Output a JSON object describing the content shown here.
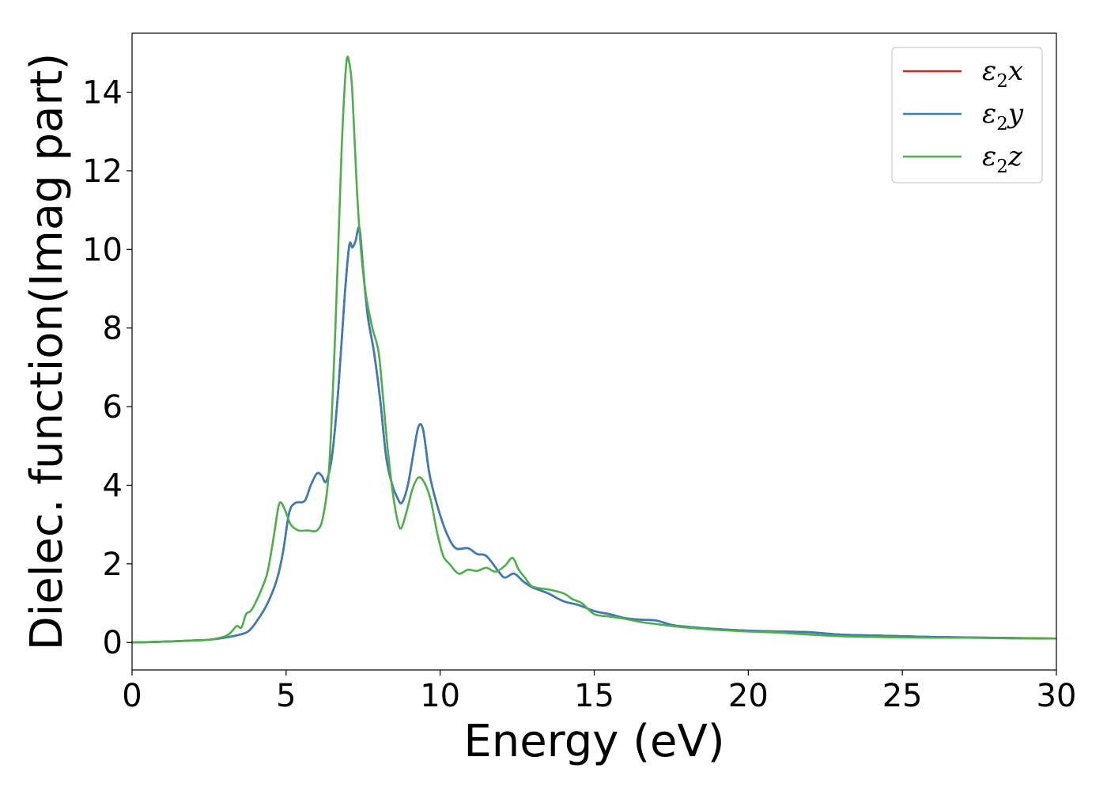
{
  "chart_data": {
    "type": "line",
    "xlabel": "Energy (eV)",
    "ylabel": "Dielec. function(Imag part)",
    "xlim": [
      0,
      30
    ],
    "ylim": [
      -0.7,
      15.5
    ],
    "xticks": [
      0,
      5,
      10,
      15,
      20,
      25,
      30
    ],
    "xtick_labels": [
      "0",
      "5",
      "10",
      "15",
      "20",
      "25",
      "30"
    ],
    "yticks": [
      0,
      2,
      4,
      6,
      8,
      10,
      12,
      14
    ],
    "ytick_labels": [
      "0",
      "2",
      "4",
      "6",
      "8",
      "10",
      "12",
      "14"
    ],
    "grid": false,
    "legend_position": "top-right",
    "series": [
      {
        "name": "ε2x",
        "legend": {
          "base": "ε",
          "sub": "2",
          "var": "x"
        },
        "color": "#e41a1c",
        "x": [
          0,
          1,
          2,
          2.5,
          3,
          3.5,
          3.8,
          4.1,
          4.4,
          4.7,
          4.9,
          5.1,
          5.3,
          5.6,
          5.8,
          6.0,
          6.15,
          6.3,
          6.5,
          6.7,
          6.9,
          7.05,
          7.15,
          7.25,
          7.38,
          7.5,
          7.65,
          7.85,
          8.05,
          8.25,
          8.45,
          8.6,
          8.75,
          8.95,
          9.15,
          9.3,
          9.45,
          9.65,
          9.9,
          10.2,
          10.5,
          10.9,
          11.2,
          11.5,
          11.9,
          12.1,
          12.4,
          12.7,
          13,
          13.5,
          14,
          14.5,
          15,
          15.5,
          16,
          16.5,
          17,
          17.5,
          18,
          19,
          20,
          21,
          22,
          23,
          24,
          25,
          26,
          27,
          28,
          29,
          30
        ],
        "values": [
          0,
          0.02,
          0.05,
          0.07,
          0.12,
          0.2,
          0.3,
          0.6,
          1.0,
          1.6,
          2.3,
          3.3,
          3.55,
          3.6,
          4.0,
          4.3,
          4.25,
          4.1,
          4.8,
          6.5,
          8.8,
          10.1,
          10.05,
          10.2,
          10.55,
          9.5,
          8.3,
          7.4,
          6.2,
          4.7,
          4.0,
          3.7,
          3.55,
          4.0,
          4.9,
          5.5,
          5.4,
          4.3,
          3.5,
          2.8,
          2.4,
          2.4,
          2.25,
          2.2,
          1.8,
          1.65,
          1.75,
          1.55,
          1.4,
          1.25,
          1.05,
          0.95,
          0.8,
          0.72,
          0.62,
          0.58,
          0.56,
          0.45,
          0.4,
          0.34,
          0.3,
          0.28,
          0.26,
          0.2,
          0.18,
          0.16,
          0.14,
          0.13,
          0.12,
          0.11,
          0.1
        ]
      },
      {
        "name": "ε2y",
        "legend": {
          "base": "ε",
          "sub": "2",
          "var": "y"
        },
        "color": "#377eb8",
        "x": [
          0,
          1,
          2,
          2.5,
          3,
          3.5,
          3.8,
          4.1,
          4.4,
          4.7,
          4.9,
          5.1,
          5.3,
          5.6,
          5.8,
          6.0,
          6.15,
          6.3,
          6.5,
          6.7,
          6.9,
          7.05,
          7.15,
          7.25,
          7.38,
          7.5,
          7.65,
          7.85,
          8.05,
          8.25,
          8.45,
          8.6,
          8.75,
          8.95,
          9.15,
          9.3,
          9.45,
          9.65,
          9.9,
          10.2,
          10.5,
          10.9,
          11.2,
          11.5,
          11.9,
          12.1,
          12.4,
          12.7,
          13,
          13.5,
          14,
          14.5,
          15,
          15.5,
          16,
          16.5,
          17,
          17.5,
          18,
          19,
          20,
          21,
          22,
          23,
          24,
          25,
          26,
          27,
          28,
          29,
          30
        ],
        "values": [
          0,
          0.02,
          0.05,
          0.07,
          0.12,
          0.2,
          0.3,
          0.6,
          1.0,
          1.6,
          2.3,
          3.3,
          3.55,
          3.6,
          4.0,
          4.3,
          4.25,
          4.1,
          4.8,
          6.5,
          8.8,
          10.1,
          10.05,
          10.2,
          10.55,
          9.5,
          8.3,
          7.4,
          6.2,
          4.7,
          4.0,
          3.7,
          3.55,
          4.0,
          4.9,
          5.5,
          5.4,
          4.3,
          3.5,
          2.8,
          2.4,
          2.4,
          2.25,
          2.2,
          1.8,
          1.65,
          1.75,
          1.55,
          1.4,
          1.25,
          1.05,
          0.95,
          0.8,
          0.72,
          0.62,
          0.58,
          0.56,
          0.45,
          0.4,
          0.34,
          0.3,
          0.28,
          0.26,
          0.2,
          0.18,
          0.16,
          0.14,
          0.13,
          0.12,
          0.11,
          0.1
        ]
      },
      {
        "name": "ε2z",
        "legend": {
          "base": "ε",
          "sub": "2",
          "var": "z"
        },
        "color": "#4daf4a",
        "x": [
          0,
          1,
          2,
          2.5,
          3,
          3.2,
          3.4,
          3.55,
          3.7,
          3.85,
          4.0,
          4.2,
          4.4,
          4.6,
          4.75,
          4.85,
          5.0,
          5.15,
          5.4,
          5.7,
          6.0,
          6.2,
          6.4,
          6.6,
          6.8,
          6.95,
          7.05,
          7.15,
          7.3,
          7.45,
          7.6,
          7.8,
          8.0,
          8.15,
          8.3,
          8.5,
          8.7,
          8.9,
          9.1,
          9.3,
          9.5,
          9.7,
          9.9,
          10.1,
          10.3,
          10.6,
          10.9,
          11.2,
          11.5,
          11.8,
          12.1,
          12.35,
          12.55,
          12.75,
          13,
          13.5,
          14,
          14.3,
          14.6,
          15,
          15.5,
          16,
          16.5,
          17,
          17.5,
          18,
          19,
          20,
          21,
          22,
          23,
          24,
          25,
          26,
          27,
          28,
          29,
          30
        ],
        "values": [
          0,
          0.02,
          0.05,
          0.07,
          0.15,
          0.25,
          0.42,
          0.38,
          0.72,
          0.8,
          1.0,
          1.35,
          1.8,
          2.7,
          3.45,
          3.55,
          3.3,
          3.0,
          2.85,
          2.85,
          2.85,
          3.2,
          4.5,
          8.0,
          12.5,
          14.7,
          14.75,
          14.0,
          11.5,
          9.8,
          8.8,
          8.0,
          7.4,
          6.2,
          4.9,
          3.6,
          2.9,
          3.3,
          3.9,
          4.2,
          4.05,
          3.6,
          2.8,
          2.2,
          2.0,
          1.75,
          1.85,
          1.82,
          1.9,
          1.8,
          1.95,
          2.15,
          1.85,
          1.65,
          1.42,
          1.35,
          1.25,
          1.1,
          1.0,
          0.72,
          0.66,
          0.6,
          0.52,
          0.47,
          0.42,
          0.38,
          0.32,
          0.28,
          0.25,
          0.2,
          0.16,
          0.14,
          0.13,
          0.12,
          0.12,
          0.11,
          0.1,
          0.1
        ]
      }
    ]
  }
}
